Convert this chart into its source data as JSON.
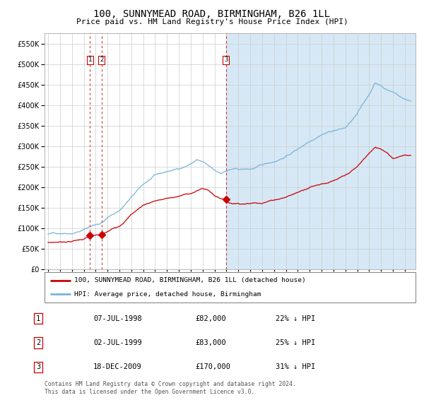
{
  "title": "100, SUNNYMEAD ROAD, BIRMINGHAM, B26 1LL",
  "subtitle": "Price paid vs. HM Land Registry's House Price Index (HPI)",
  "hpi_color": "#7ab4d8",
  "price_color": "#cc0000",
  "shade_color": "#d6e8f5",
  "purchases": [
    {
      "date": 1998.52,
      "price": 82000,
      "label": "1"
    },
    {
      "date": 1999.5,
      "price": 83000,
      "label": "2"
    },
    {
      "date": 2009.96,
      "price": 170000,
      "label": "3"
    }
  ],
  "vline_dates": [
    1998.52,
    1999.5,
    2009.96
  ],
  "legend_entries": [
    "100, SUNNYMEAD ROAD, BIRMINGHAM, B26 1LL (detached house)",
    "HPI: Average price, detached house, Birmingham"
  ],
  "table_rows": [
    [
      "1",
      "07-JUL-1998",
      "£82,000",
      "22% ↓ HPI"
    ],
    [
      "2",
      "02-JUL-1999",
      "£83,000",
      "25% ↓ HPI"
    ],
    [
      "3",
      "18-DEC-2009",
      "£170,000",
      "31% ↓ HPI"
    ]
  ],
  "footer": "Contains HM Land Registry data © Crown copyright and database right 2024.\nThis data is licensed under the Open Government Licence v3.0.",
  "ylim": [
    0,
    575000
  ],
  "yticks": [
    0,
    50000,
    100000,
    150000,
    200000,
    250000,
    300000,
    350000,
    400000,
    450000,
    500000,
    550000
  ],
  "xlim_min": 1994.7,
  "xlim_max": 2025.9
}
